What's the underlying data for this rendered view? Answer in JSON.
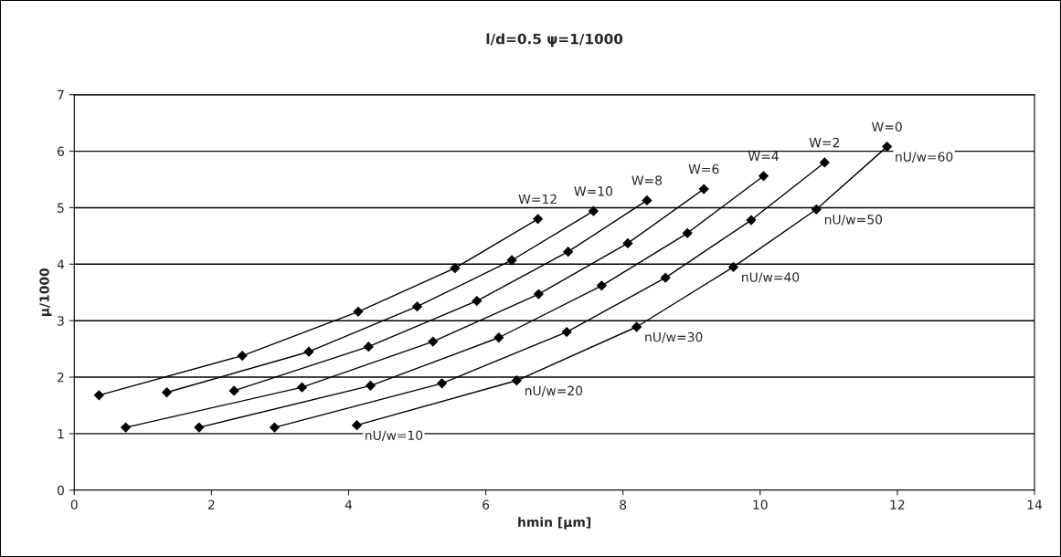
{
  "chart_data": {
    "type": "line",
    "title": "l/d=0.5 ψ=1/1000",
    "xlabel": "hmin [μm]",
    "ylabel": "μ/1000",
    "xlim": [
      0,
      14
    ],
    "xticks": [
      0,
      2,
      4,
      6,
      8,
      10,
      12,
      14
    ],
    "ylim": [
      0,
      7
    ],
    "yticks": [
      0,
      1,
      2,
      3,
      4,
      5,
      6,
      7
    ],
    "grid": "y",
    "legend": false,
    "marker": "diamond",
    "line_style": "solid",
    "series": [
      {
        "name": "W=0",
        "color": "#000000",
        "x": [
          4.12,
          6.45,
          8.2,
          9.61,
          10.82,
          11.85
        ],
        "values": [
          1.15,
          1.94,
          2.89,
          3.95,
          4.97,
          6.08
        ]
      },
      {
        "name": "W=2",
        "color": "#000000",
        "x": [
          2.92,
          5.36,
          7.18,
          8.62,
          9.87,
          10.94
        ],
        "values": [
          1.11,
          1.89,
          2.8,
          3.76,
          4.78,
          5.8
        ]
      },
      {
        "name": "W=4",
        "color": "#000000",
        "x": [
          1.82,
          4.32,
          6.19,
          7.69,
          8.94,
          10.05
        ],
        "values": [
          1.11,
          1.85,
          2.7,
          3.62,
          4.55,
          5.56
        ]
      },
      {
        "name": "W=6",
        "color": "#000000",
        "x": [
          0.75,
          3.32,
          5.23,
          6.77,
          8.07,
          9.18
        ],
        "values": [
          1.11,
          1.82,
          2.63,
          3.47,
          4.37,
          5.33
        ]
      },
      {
        "name": "W=8",
        "color": "#000000",
        "x": [
          2.33,
          4.29,
          5.87,
          7.2,
          8.35
        ],
        "values": [
          1.76,
          2.54,
          3.35,
          4.22,
          5.13
        ]
      },
      {
        "name": "W=10",
        "color": "#000000",
        "x": [
          1.35,
          3.42,
          5.0,
          6.38,
          7.57
        ],
        "values": [
          1.73,
          2.45,
          3.25,
          4.07,
          4.94
        ]
      },
      {
        "name": "W=12",
        "color": "#000000",
        "x": [
          0.36,
          2.45,
          4.14,
          5.55,
          6.76
        ],
        "values": [
          1.68,
          2.38,
          3.16,
          3.93,
          4.8
        ]
      }
    ],
    "annotations": [
      {
        "text": "nU/w=10",
        "x": 4.12,
        "y": 1.15
      },
      {
        "text": "nU/w=20",
        "x": 6.45,
        "y": 1.94
      },
      {
        "text": "nU/w=30",
        "x": 8.2,
        "y": 2.89
      },
      {
        "text": "nU/w=40",
        "x": 9.61,
        "y": 3.95
      },
      {
        "text": "nU/w=50",
        "x": 10.82,
        "y": 4.97
      },
      {
        "text": "nU/w=60",
        "x": 11.85,
        "y": 6.08
      }
    ]
  }
}
